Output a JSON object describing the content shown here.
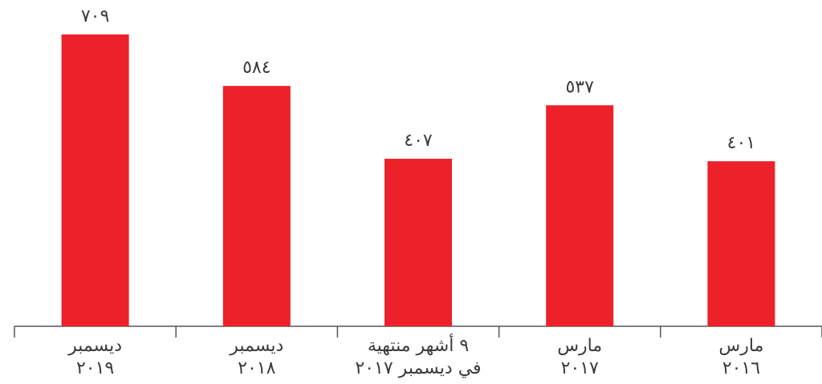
{
  "chart_data": {
    "type": "bar",
    "categories": [
      [
        "ديسمبر",
        "٢٠١٩"
      ],
      [
        "ديسمبر",
        "٢٠١٨"
      ],
      [
        "٩ أشهر منتهية",
        "في ديسمبر ٢٠١٧"
      ],
      [
        "مارس",
        "٢٠١٧"
      ],
      [
        "مارس",
        "٢٠١٦"
      ]
    ],
    "values": [
      709,
      584,
      407,
      537,
      401
    ],
    "value_labels": [
      "٧٠٩",
      "٥٨٤",
      "٤٠٧",
      "٥٣٧",
      "٤٠١"
    ],
    "color": "#ed2129"
  }
}
